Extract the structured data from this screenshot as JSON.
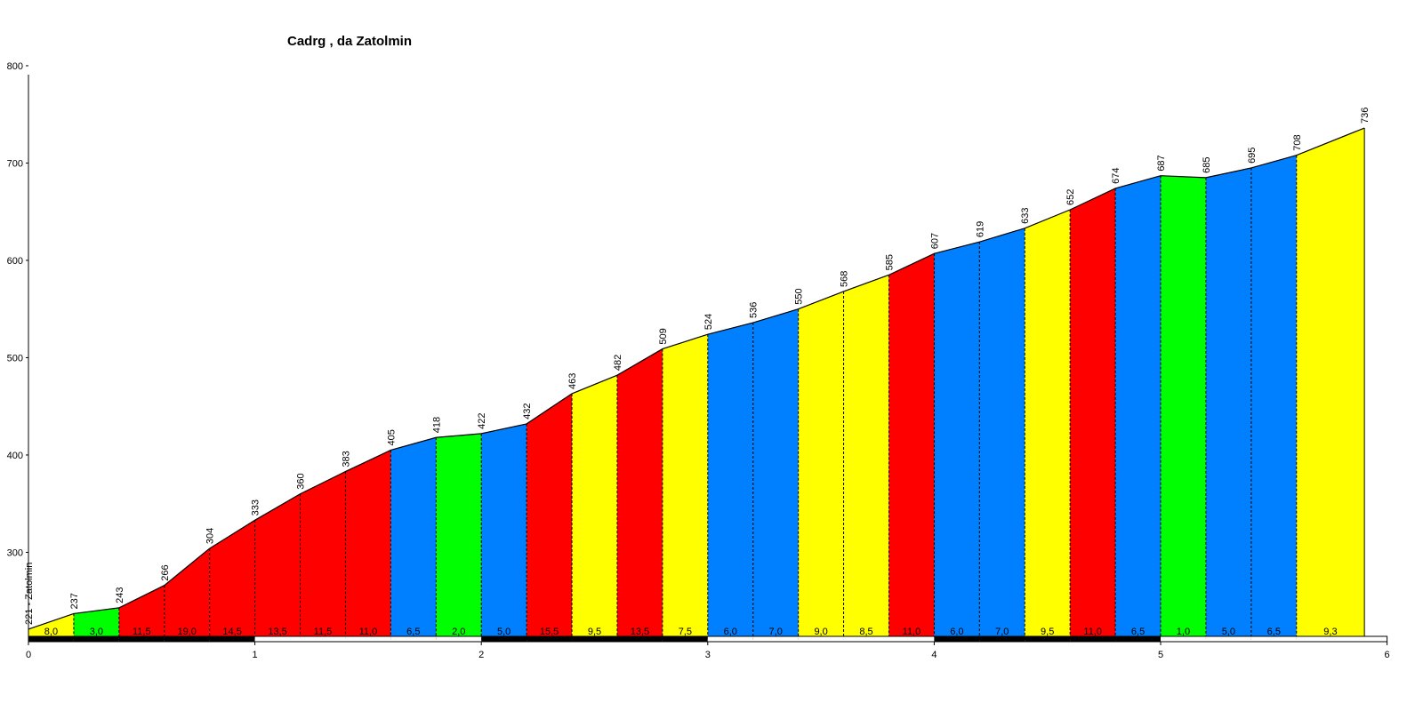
{
  "chart_data": {
    "type": "area",
    "title": "Cadrg , da Zatolmin",
    "xlabel": "",
    "ylabel": "",
    "xlim": [
      0,
      6
    ],
    "ylim": [
      210,
      800
    ],
    "x_ticks": [
      "0",
      "1",
      "2",
      "3",
      "4",
      "5",
      "6"
    ],
    "y_ticks": [
      "300",
      "400",
      "500",
      "600",
      "700",
      "800"
    ],
    "start_label": "221 - Zatolmin",
    "points": [
      {
        "x": 0.0,
        "elevation": 221
      },
      {
        "x": 0.2,
        "elevation": 237
      },
      {
        "x": 0.4,
        "elevation": 243
      },
      {
        "x": 0.6,
        "elevation": 266
      },
      {
        "x": 0.8,
        "elevation": 304
      },
      {
        "x": 1.0,
        "elevation": 333
      },
      {
        "x": 1.2,
        "elevation": 360
      },
      {
        "x": 1.4,
        "elevation": 383
      },
      {
        "x": 1.6,
        "elevation": 405
      },
      {
        "x": 1.8,
        "elevation": 418
      },
      {
        "x": 2.0,
        "elevation": 422
      },
      {
        "x": 2.2,
        "elevation": 432
      },
      {
        "x": 2.4,
        "elevation": 463
      },
      {
        "x": 2.6,
        "elevation": 482
      },
      {
        "x": 2.8,
        "elevation": 509
      },
      {
        "x": 3.0,
        "elevation": 524
      },
      {
        "x": 3.2,
        "elevation": 536
      },
      {
        "x": 3.4,
        "elevation": 550
      },
      {
        "x": 3.6,
        "elevation": 568
      },
      {
        "x": 3.8,
        "elevation": 585
      },
      {
        "x": 4.0,
        "elevation": 607
      },
      {
        "x": 4.2,
        "elevation": 619
      },
      {
        "x": 4.4,
        "elevation": 633
      },
      {
        "x": 4.6,
        "elevation": 652
      },
      {
        "x": 4.8,
        "elevation": 674
      },
      {
        "x": 5.0,
        "elevation": 687
      },
      {
        "x": 5.2,
        "elevation": 685
      },
      {
        "x": 5.4,
        "elevation": 695
      },
      {
        "x": 5.6,
        "elevation": 708
      },
      {
        "x": 5.9,
        "elevation": 736
      }
    ],
    "segments": [
      {
        "gradient": "8,0",
        "color": "#FFFF00"
      },
      {
        "gradient": "3,0",
        "color": "#00FF00"
      },
      {
        "gradient": "11,5",
        "color": "#FF0000"
      },
      {
        "gradient": "19,0",
        "color": "#FF0000"
      },
      {
        "gradient": "14,5",
        "color": "#FF0000"
      },
      {
        "gradient": "13,5",
        "color": "#FF0000"
      },
      {
        "gradient": "11,5",
        "color": "#FF0000"
      },
      {
        "gradient": "11,0",
        "color": "#FF0000"
      },
      {
        "gradient": "6,5",
        "color": "#0080FF"
      },
      {
        "gradient": "2,0",
        "color": "#00FF00"
      },
      {
        "gradient": "5,0",
        "color": "#0080FF"
      },
      {
        "gradient": "15,5",
        "color": "#FF0000"
      },
      {
        "gradient": "9,5",
        "color": "#FFFF00"
      },
      {
        "gradient": "13,5",
        "color": "#FF0000"
      },
      {
        "gradient": "7,5",
        "color": "#FFFF00"
      },
      {
        "gradient": "6,0",
        "color": "#0080FF"
      },
      {
        "gradient": "7,0",
        "color": "#0080FF"
      },
      {
        "gradient": "9,0",
        "color": "#FFFF00"
      },
      {
        "gradient": "8,5",
        "color": "#FFFF00"
      },
      {
        "gradient": "11,0",
        "color": "#FF0000"
      },
      {
        "gradient": "6,0",
        "color": "#0080FF"
      },
      {
        "gradient": "7,0",
        "color": "#0080FF"
      },
      {
        "gradient": "9,5",
        "color": "#FFFF00"
      },
      {
        "gradient": "11,0",
        "color": "#FF0000"
      },
      {
        "gradient": "6,5",
        "color": "#0080FF"
      },
      {
        "gradient": "1,0",
        "color": "#00FF00"
      },
      {
        "gradient": "5,0",
        "color": "#0080FF"
      },
      {
        "gradient": "6,5",
        "color": "#0080FF"
      },
      {
        "gradient": "9,3",
        "color": "#FFFF00"
      }
    ]
  }
}
